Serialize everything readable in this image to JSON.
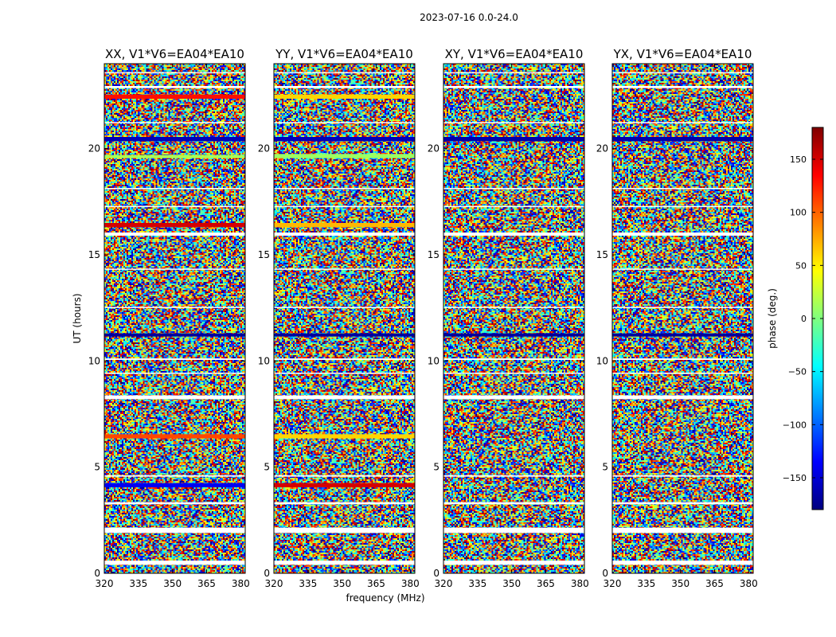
{
  "figure": {
    "suptitle": "2023-07-16 0.0-24.0",
    "xlabel": "frequency (MHz)",
    "ylabel": "UT (hours)"
  },
  "colorbar": {
    "label": "phase (deg.)",
    "ticks": [
      "150",
      "100",
      "50",
      "0",
      "−50",
      "−100",
      "−150"
    ],
    "tick_values": [
      150,
      100,
      50,
      0,
      -50,
      -100,
      -150
    ],
    "range": [
      -180,
      180
    ],
    "colormap": "jet",
    "colors": [
      "#00007f",
      "#0000ff",
      "#007fff",
      "#00ffff",
      "#7fff7f",
      "#ffff00",
      "#ff7f00",
      "#ff0000",
      "#7f0000"
    ]
  },
  "chart_data": [
    {
      "type": "heatmap",
      "title": "XX, V1*V6=EA04*EA10",
      "x_ticks": [
        "320",
        "335",
        "350",
        "365",
        "380"
      ],
      "x_tick_values": [
        320,
        335,
        350,
        365,
        380
      ],
      "y_ticks": [
        "0",
        "5",
        "10",
        "15",
        "20"
      ],
      "y_tick_values": [
        0,
        5,
        10,
        15,
        20
      ],
      "xlim": [
        320,
        382
      ],
      "ylim": [
        0,
        24
      ],
      "value": "phase (deg.)",
      "coherent_bands": [
        {
          "ut_start": 22.35,
          "ut_end": 22.55,
          "phase_deg": 130
        },
        {
          "ut_start": 20.35,
          "ut_end": 20.55,
          "phase_deg": -160
        },
        {
          "ut_start": 19.55,
          "ut_end": 19.7,
          "phase_deg": 15
        },
        {
          "ut_start": 16.3,
          "ut_end": 16.5,
          "phase_deg": 150
        },
        {
          "ut_start": 11.15,
          "ut_end": 11.3,
          "phase_deg": -170
        },
        {
          "ut_start": 6.35,
          "ut_end": 6.55,
          "phase_deg": 110
        },
        {
          "ut_start": 4.05,
          "ut_end": 4.25,
          "phase_deg": -140
        }
      ]
    },
    {
      "type": "heatmap",
      "title": "YY, V1*V6=EA04*EA10",
      "x_ticks": [
        "320",
        "335",
        "350",
        "365",
        "380"
      ],
      "x_tick_values": [
        320,
        335,
        350,
        365,
        380
      ],
      "y_ticks": [
        "0",
        "5",
        "10",
        "15",
        "20"
      ],
      "y_tick_values": [
        0,
        5,
        10,
        15,
        20
      ],
      "xlim": [
        320,
        382
      ],
      "ylim": [
        0,
        24
      ],
      "value": "phase (deg.)",
      "coherent_bands": [
        {
          "ut_start": 22.35,
          "ut_end": 22.55,
          "phase_deg": 60
        },
        {
          "ut_start": 20.35,
          "ut_end": 20.55,
          "phase_deg": -160
        },
        {
          "ut_start": 19.55,
          "ut_end": 19.75,
          "phase_deg": 10
        },
        {
          "ut_start": 16.3,
          "ut_end": 16.5,
          "phase_deg": 70
        },
        {
          "ut_start": 11.15,
          "ut_end": 11.3,
          "phase_deg": -170
        },
        {
          "ut_start": 6.35,
          "ut_end": 6.55,
          "phase_deg": 60
        },
        {
          "ut_start": 4.05,
          "ut_end": 4.25,
          "phase_deg": 150
        }
      ]
    },
    {
      "type": "heatmap",
      "title": "XY, V1*V6=EA04*EA10",
      "x_ticks": [
        "320",
        "335",
        "350",
        "365",
        "380"
      ],
      "x_tick_values": [
        320,
        335,
        350,
        365,
        380
      ],
      "y_ticks": [
        "0",
        "5",
        "10",
        "15",
        "20"
      ],
      "y_tick_values": [
        0,
        5,
        10,
        15,
        20
      ],
      "xlim": [
        320,
        382
      ],
      "ylim": [
        0,
        24
      ],
      "value": "phase (deg.)",
      "coherent_bands": [
        {
          "ut_start": 20.35,
          "ut_end": 20.55,
          "phase_deg": -165
        },
        {
          "ut_start": 11.15,
          "ut_end": 11.3,
          "phase_deg": -170
        }
      ]
    },
    {
      "type": "heatmap",
      "title": "YX, V1*V6=EA04*EA10",
      "x_ticks": [
        "320",
        "335",
        "350",
        "365",
        "380"
      ],
      "x_tick_values": [
        320,
        335,
        350,
        365,
        380
      ],
      "y_ticks": [
        "0",
        "5",
        "10",
        "15",
        "20"
      ],
      "y_tick_values": [
        0,
        5,
        10,
        15,
        20
      ],
      "xlim": [
        320,
        382
      ],
      "ylim": [
        0,
        24
      ],
      "value": "phase (deg.)",
      "coherent_bands": [
        {
          "ut_start": 20.35,
          "ut_end": 20.55,
          "phase_deg": -165
        },
        {
          "ut_start": 11.15,
          "ut_end": 11.3,
          "phase_deg": -170
        }
      ]
    }
  ],
  "gaps_ut": [
    [
      0.4,
      0.6
    ],
    [
      1.9,
      2.15
    ],
    [
      3.25,
      3.35
    ],
    [
      4.55,
      4.62
    ],
    [
      8.2,
      8.38
    ],
    [
      9.4,
      9.45
    ],
    [
      10.05,
      10.12
    ],
    [
      12.5,
      12.55
    ],
    [
      14.3,
      14.35
    ],
    [
      15.9,
      16.05
    ],
    [
      17.25,
      17.3
    ],
    [
      18.1,
      18.15
    ],
    [
      21.2,
      21.25
    ],
    [
      22.85,
      22.95
    ],
    [
      23.55,
      23.6
    ]
  ]
}
